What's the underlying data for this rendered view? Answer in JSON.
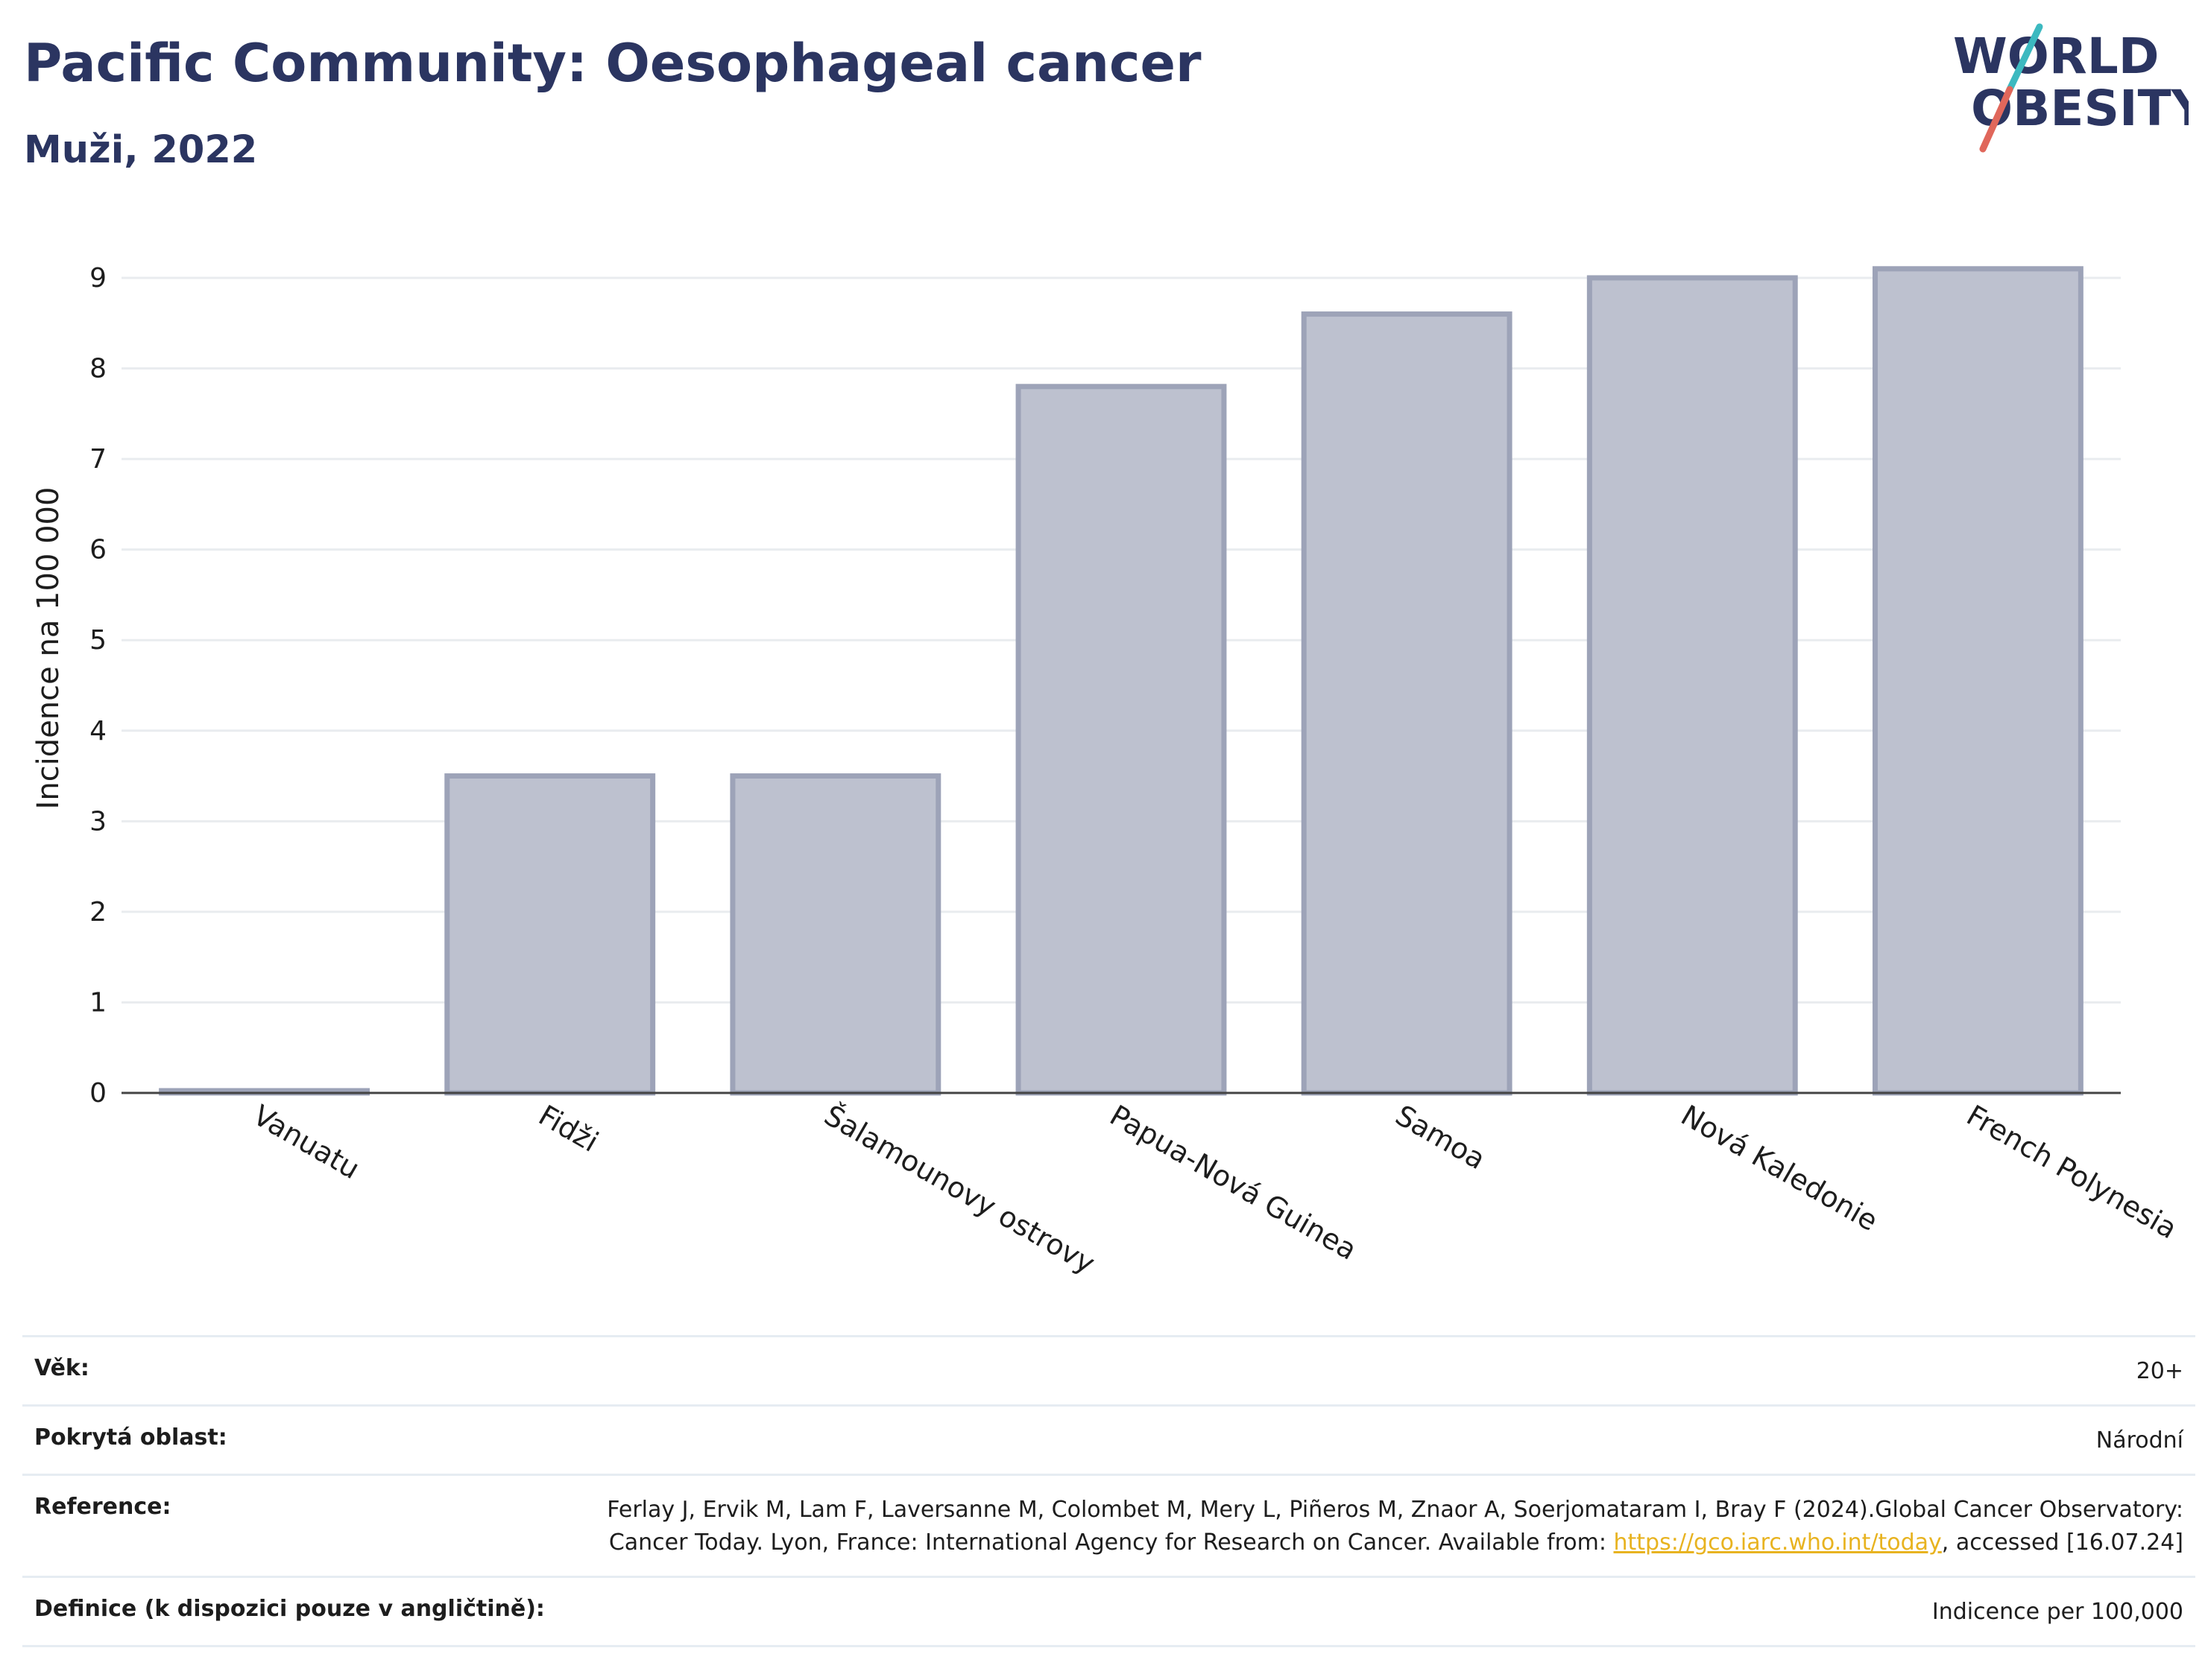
{
  "header": {
    "title": "Pacific Community: Oesophageal cancer",
    "subtitle": "Muži, 2022"
  },
  "logo": {
    "line1": "WORLD",
    "line2": "OBESITY",
    "colors": {
      "text": "#2b3561",
      "slash_red": "#e0675b",
      "slash_teal": "#3cb9c0"
    }
  },
  "chart_data": {
    "type": "bar",
    "title": "Pacific Community: Oesophageal cancer",
    "subtitle": "Muži, 2022",
    "ylabel": "Incidence na 100 000",
    "xlabel": "",
    "categories": [
      "Vanuatu",
      "Fidži",
      "Šalamounovy ostrovy",
      "Papua-Nová Guinea",
      "Samoa",
      "Nová Kaledonie",
      "French Polynesia"
    ],
    "values": [
      0.02,
      3.5,
      3.5,
      7.8,
      8.6,
      9.0,
      9.1
    ],
    "ylim": [
      0,
      9.6
    ],
    "yticks": [
      0,
      1,
      2,
      3,
      4,
      5,
      6,
      7,
      8,
      9
    ],
    "grid": true,
    "colors": {
      "bar_fill": "#bdc1cf",
      "bar_stroke": "#9da3b8",
      "grid": "#e9ecef",
      "axis": "#444444"
    }
  },
  "info": {
    "age_label": "Věk:",
    "age_value": "20+",
    "area_label": "Pokrytá oblast:",
    "area_value": "Národní",
    "reference_label": "Reference:",
    "reference_text_1": "Ferlay J, Ervik M, Lam F, Laversanne M, Colombet M, Mery L, Piñeros M, Znaor A, Soerjomataram I, Bray F (2024).Global Cancer Observatory: Cancer Today. Lyon, France: International Agency for Research on Cancer. Available from: ",
    "reference_link": "https://gco.iarc.who.int/today",
    "reference_text_2": ", accessed [16.07.24]",
    "definition_label": "Definice (k dispozici pouze v angličtině):",
    "definition_value": "Indicence per 100,000"
  }
}
